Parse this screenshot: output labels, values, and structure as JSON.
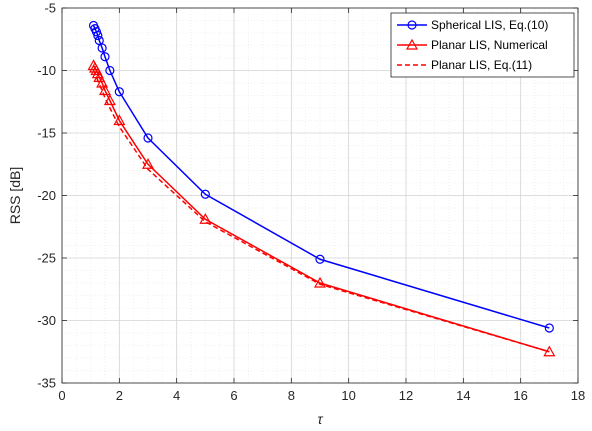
{
  "chart_data": {
    "type": "line",
    "title": "",
    "xlabel": "τ",
    "ylabel": "RSS [dB]",
    "xlim": [
      0,
      18
    ],
    "ylim": [
      -35,
      -5
    ],
    "xticks": [
      0,
      2,
      4,
      6,
      8,
      10,
      12,
      14,
      16,
      18
    ],
    "yticks": [
      -35,
      -30,
      -25,
      -20,
      -15,
      -10,
      -5
    ],
    "xtick_labels": [
      "0",
      "2",
      "4",
      "6",
      "8",
      "10",
      "12",
      "14",
      "16",
      "18"
    ],
    "ytick_labels": [
      "-35",
      "-30",
      "-25",
      "-20",
      "-15",
      "-10",
      "-5"
    ],
    "grid": true,
    "minor_grid": true,
    "legend_position": "top-right",
    "series": [
      {
        "name": "Spherical LIS, Eq.(10)",
        "color": "#0000ff",
        "line_style": "solid",
        "marker": "circle",
        "x": [
          1.1,
          1.15,
          1.2,
          1.25,
          1.3,
          1.4,
          1.5,
          1.67,
          2,
          3,
          5,
          9,
          17
        ],
        "y": [
          -6.4,
          -6.65,
          -6.9,
          -7.2,
          -7.6,
          -8.2,
          -8.9,
          -10.0,
          -11.7,
          -15.4,
          -19.9,
          -25.1,
          -30.6
        ]
      },
      {
        "name": "Planar LIS, Numerical",
        "color": "#ff0000",
        "line_style": "solid",
        "marker": "triangle",
        "x": [
          1.1,
          1.15,
          1.2,
          1.25,
          1.3,
          1.4,
          1.5,
          1.67,
          2,
          3,
          5,
          9,
          17
        ],
        "y": [
          -9.6,
          -9.8,
          -10.0,
          -10.25,
          -10.55,
          -11.0,
          -11.6,
          -12.4,
          -14.0,
          -17.5,
          -21.9,
          -27.0,
          -32.5
        ]
      },
      {
        "name": "Planar LIS, Eq.(11)",
        "color": "#ff0000",
        "line_style": "dashed",
        "marker": "none",
        "x": [
          1.1,
          1.15,
          1.2,
          1.25,
          1.3,
          1.4,
          1.5,
          1.67,
          2,
          3,
          5,
          9,
          17
        ],
        "y": [
          -10.0,
          -10.25,
          -10.5,
          -10.8,
          -11.1,
          -11.6,
          -12.2,
          -13.0,
          -14.5,
          -17.9,
          -22.1,
          -27.1,
          -32.5
        ]
      }
    ]
  }
}
